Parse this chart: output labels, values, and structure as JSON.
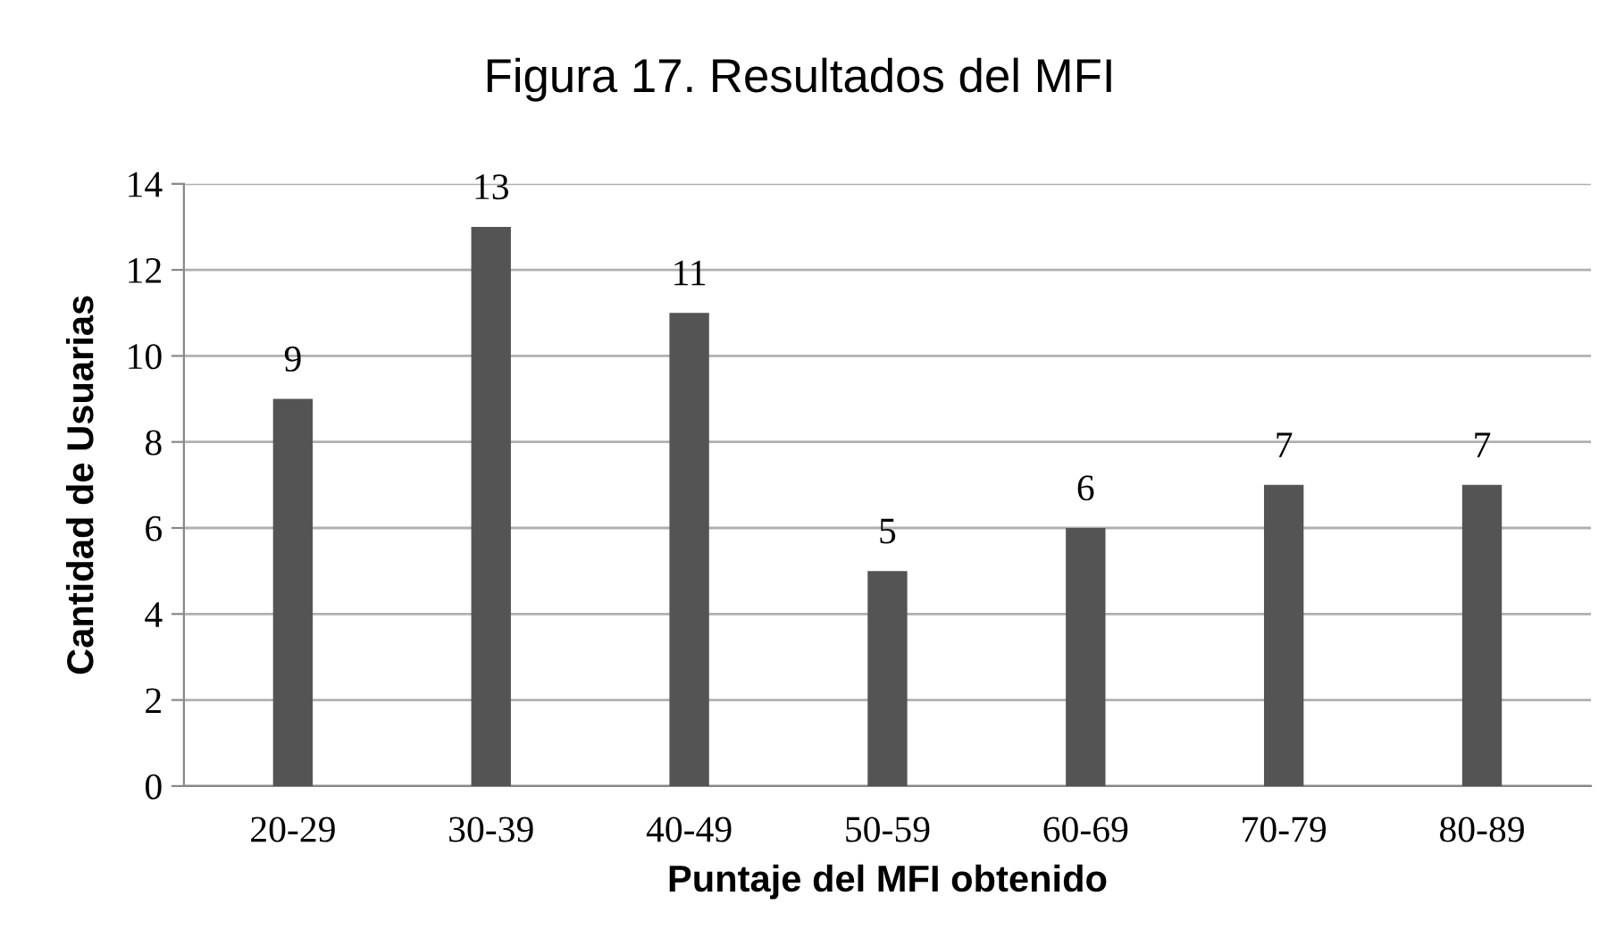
{
  "chart_data": {
    "type": "bar",
    "title": "Figura 17. Resultados del MFI",
    "xlabel": "Puntaje del MFI obtenido",
    "ylabel": "Cantidad de Usuarias",
    "categories": [
      "20-29",
      "30-39",
      "40-49",
      "50-59",
      "60-69",
      "70-79",
      "80-89"
    ],
    "values": [
      9,
      13,
      11,
      5,
      6,
      7,
      7
    ],
    "color": "#545454",
    "ylim": [
      0,
      14
    ],
    "yticks": [
      0,
      2,
      4,
      6,
      8,
      10,
      12,
      14
    ],
    "grid": "y",
    "data_labels": true
  }
}
